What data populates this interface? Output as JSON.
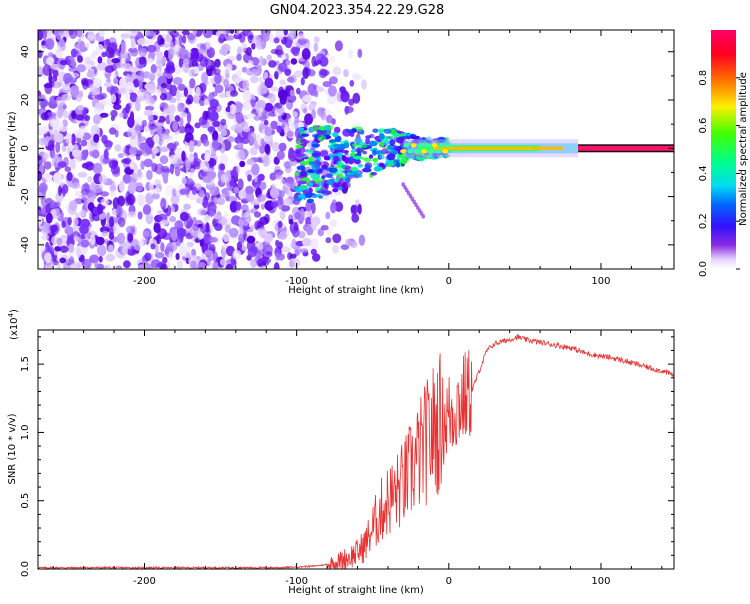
{
  "figure_title": "GN04.2023.354.22.29.G28",
  "chart_data": [
    {
      "type": "heatmap",
      "title": "GN04.2023.354.22.29.G28",
      "xlabel": "Height of straight line (km)",
      "ylabel": "Frequency (Hz)",
      "xlim": [
        -270,
        148
      ],
      "ylim": [
        -50,
        49
      ],
      "x_ticks": [
        -200,
        -100,
        0,
        100
      ],
      "y_ticks": [
        -40,
        -20,
        0,
        20,
        40
      ],
      "colorbar": {
        "label": "Normalized spectral amplitude",
        "range": [
          0,
          1
        ],
        "ticks": [
          0.0,
          0.2,
          0.4,
          0.6,
          0.8
        ],
        "tick_labels": [
          "0.0",
          "0.2",
          "0.4",
          "0.6",
          "0.8"
        ]
      },
      "description_features": {
        "noise_region_x": [
          -270,
          -80
        ],
        "scintillation_region_x": [
          -95,
          -30
        ],
        "stable_tone_start_x": 0,
        "stable_tone_frequency_hz": 0,
        "tone_peak_amplitude": 0.95
      }
    },
    {
      "type": "line",
      "xlabel": "Height of straight line (km)",
      "ylabel": "SNR (10 * v/v)",
      "y_multiplier_label": "(x10",
      "y_multiplier_exp": "4",
      "y_multiplier_close": ")",
      "xlim": [
        -270,
        148
      ],
      "ylim": [
        0,
        1.75
      ],
      "x_ticks": [
        -200,
        -100,
        0,
        100
      ],
      "y_ticks": [
        0.0,
        0.5,
        1.0,
        1.5
      ],
      "y_tick_labels": [
        "0.0",
        "0.5",
        "1.0",
        "1.5"
      ],
      "line_color": "#e83030",
      "series": [
        {
          "x": [
            -270,
            -250,
            -200,
            -150,
            -110,
            -90,
            -75,
            -65,
            -60,
            -55,
            -50,
            -45,
            -40,
            -35,
            -30,
            -25,
            -20,
            -15,
            -10,
            -5,
            0,
            5,
            10,
            15,
            20,
            25,
            30,
            40,
            45,
            50,
            60,
            70,
            80,
            90,
            100,
            110,
            120,
            130,
            140,
            148
          ],
          "y": [
            0.01,
            0.01,
            0.01,
            0.01,
            0.01,
            0.02,
            0.04,
            0.09,
            0.12,
            0.18,
            0.3,
            0.42,
            0.5,
            0.55,
            0.62,
            0.72,
            0.82,
            0.92,
            1.02,
            1.08,
            1.12,
            1.2,
            1.25,
            1.3,
            1.45,
            1.6,
            1.65,
            1.68,
            1.7,
            1.68,
            1.66,
            1.64,
            1.62,
            1.58,
            1.56,
            1.54,
            1.51,
            1.48,
            1.45,
            1.42
          ]
        }
      ]
    }
  ]
}
